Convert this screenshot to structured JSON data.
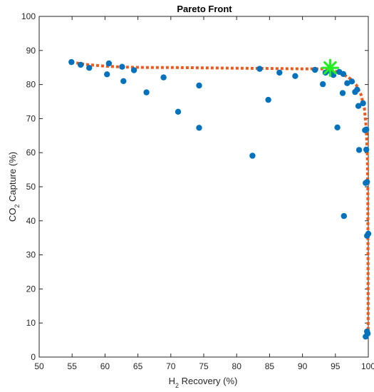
{
  "chart_data": {
    "type": "scatter",
    "title": "Pareto Front",
    "xlabel_parts": [
      "H",
      "2",
      " Recovery (%)"
    ],
    "ylabel_parts": [
      "CO",
      "2",
      " Capture (%)"
    ],
    "xlim": [
      50,
      100
    ],
    "ylim": [
      0,
      100
    ],
    "xticks": [
      50,
      55,
      60,
      65,
      70,
      75,
      80,
      85,
      90,
      95,
      100
    ],
    "yticks": [
      0,
      10,
      20,
      30,
      40,
      50,
      60,
      70,
      80,
      90,
      100
    ],
    "grid": false,
    "colors": {
      "points": "#0072BD",
      "front": "#EE5A1C",
      "selected": "#22EE22",
      "axis": "#262626"
    },
    "series": [
      {
        "type": "scatter",
        "points": [
          [
            54.9,
            86.6
          ],
          [
            56.3,
            85.8
          ],
          [
            57.6,
            84.9
          ],
          [
            60.3,
            83.0
          ],
          [
            60.6,
            86.2
          ],
          [
            62.6,
            85.2
          ],
          [
            62.8,
            81.0
          ],
          [
            64.4,
            84.2
          ],
          [
            66.3,
            77.7
          ],
          [
            68.9,
            82.1
          ],
          [
            71.1,
            72.0
          ],
          [
            74.3,
            79.7
          ],
          [
            74.3,
            67.3
          ],
          [
            82.4,
            59.1
          ],
          [
            83.5,
            84.6
          ],
          [
            84.8,
            75.5
          ],
          [
            86.5,
            83.5
          ],
          [
            88.9,
            82.5
          ],
          [
            91.9,
            84.3
          ],
          [
            93.1,
            80.1
          ],
          [
            93.5,
            83.5
          ],
          [
            94.2,
            84.0
          ],
          [
            94.7,
            82.8
          ],
          [
            95.3,
            67.4
          ],
          [
            95.6,
            83.7
          ],
          [
            96.1,
            77.5
          ],
          [
            96.2,
            83.1
          ],
          [
            96.3,
            41.4
          ],
          [
            96.8,
            80.4
          ],
          [
            97.5,
            80.9
          ],
          [
            98.0,
            77.8
          ],
          [
            98.3,
            78.5
          ],
          [
            98.5,
            73.7
          ],
          [
            98.6,
            60.8
          ],
          [
            99.2,
            74.5
          ],
          [
            99.5,
            66.6
          ],
          [
            99.7,
            66.8
          ],
          [
            99.7,
            60.9
          ],
          [
            99.8,
            51.4
          ],
          [
            99.6,
            51.1
          ],
          [
            99.8,
            35.6
          ],
          [
            100.0,
            36.2
          ],
          [
            99.8,
            7.5
          ],
          [
            99.9,
            6.9
          ],
          [
            99.6,
            6.0
          ]
        ]
      },
      {
        "type": "line",
        "points": [
          [
            54.9,
            86.6
          ],
          [
            57.0,
            85.9
          ],
          [
            60.0,
            85.4
          ],
          [
            63.0,
            85.1
          ],
          [
            66.0,
            85.0
          ],
          [
            70.0,
            85.0
          ],
          [
            75.0,
            84.9
          ],
          [
            80.0,
            84.8
          ],
          [
            85.0,
            84.7
          ],
          [
            90.0,
            84.6
          ],
          [
            93.0,
            84.6
          ],
          [
            94.5,
            84.3
          ],
          [
            96.0,
            83.2
          ],
          [
            97.2,
            81.8
          ],
          [
            98.2,
            79.8
          ],
          [
            98.9,
            77.0
          ],
          [
            99.4,
            73.0
          ],
          [
            99.7,
            67.0
          ],
          [
            99.85,
            60.0
          ],
          [
            99.92,
            50.0
          ],
          [
            99.95,
            35.0
          ],
          [
            99.97,
            20.0
          ],
          [
            99.98,
            7.0
          ]
        ]
      },
      {
        "type": "marker",
        "points": [
          [
            94.2,
            84.9
          ]
        ]
      }
    ]
  }
}
